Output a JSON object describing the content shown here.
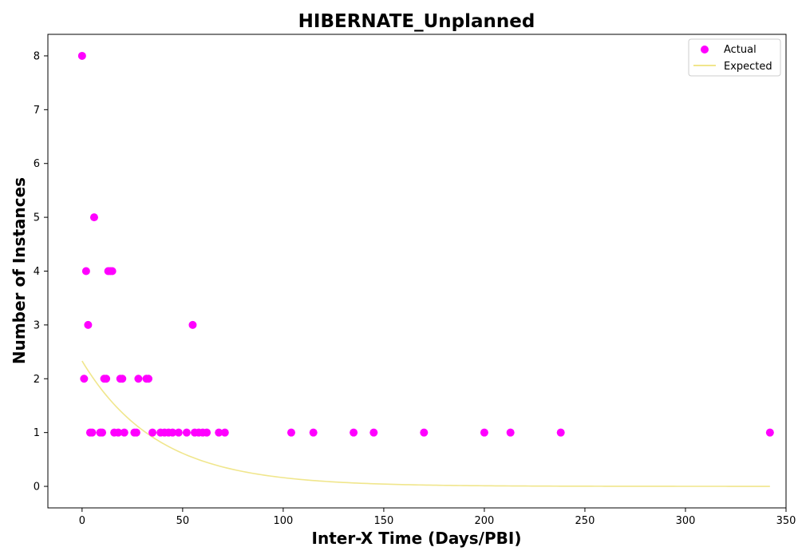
{
  "chart_data": {
    "type": "scatter",
    "title": "HIBERNATE_Unplanned",
    "xlabel": "Inter-X Time (Days/PBI)",
    "ylabel": "Number of Instances",
    "xlim": [
      -17,
      350
    ],
    "ylim": [
      -0.4,
      8.4
    ],
    "xticks": [
      0,
      50,
      100,
      150,
      200,
      250,
      300,
      350
    ],
    "yticks": [
      0,
      1,
      2,
      3,
      4,
      5,
      6,
      7,
      8
    ],
    "grid": false,
    "legend_position": "top-right",
    "series": [
      {
        "name": "Actual",
        "kind": "scatter",
        "color": "#ff00ff",
        "points": [
          [
            0,
            8
          ],
          [
            1,
            2
          ],
          [
            2,
            4
          ],
          [
            3,
            3
          ],
          [
            4,
            1
          ],
          [
            5,
            1
          ],
          [
            6,
            5
          ],
          [
            9,
            1
          ],
          [
            10,
            1
          ],
          [
            11,
            2
          ],
          [
            12,
            2
          ],
          [
            13,
            4
          ],
          [
            14,
            4
          ],
          [
            15,
            4
          ],
          [
            16,
            1
          ],
          [
            18,
            1
          ],
          [
            19,
            2
          ],
          [
            20,
            2
          ],
          [
            21,
            1
          ],
          [
            26,
            1
          ],
          [
            27,
            1
          ],
          [
            28,
            2
          ],
          [
            32,
            2
          ],
          [
            33,
            2
          ],
          [
            35,
            1
          ],
          [
            39,
            1
          ],
          [
            41,
            1
          ],
          [
            43,
            1
          ],
          [
            45,
            1
          ],
          [
            48,
            1
          ],
          [
            52,
            1
          ],
          [
            55,
            3
          ],
          [
            56,
            1
          ],
          [
            58,
            1
          ],
          [
            60,
            1
          ],
          [
            62,
            1
          ],
          [
            68,
            1
          ],
          [
            71,
            1
          ],
          [
            104,
            1
          ],
          [
            115,
            1
          ],
          [
            135,
            1
          ],
          [
            145,
            1
          ],
          [
            170,
            1
          ],
          [
            200,
            1
          ],
          [
            213,
            1
          ],
          [
            238,
            1
          ],
          [
            342,
            1
          ]
        ]
      },
      {
        "name": "Expected",
        "kind": "line",
        "color": "#f0e68c",
        "function": {
          "form": "a*exp(-x/tau)",
          "a": 2.33,
          "tau": 37.5
        },
        "x_range": [
          0,
          342
        ]
      }
    ]
  }
}
